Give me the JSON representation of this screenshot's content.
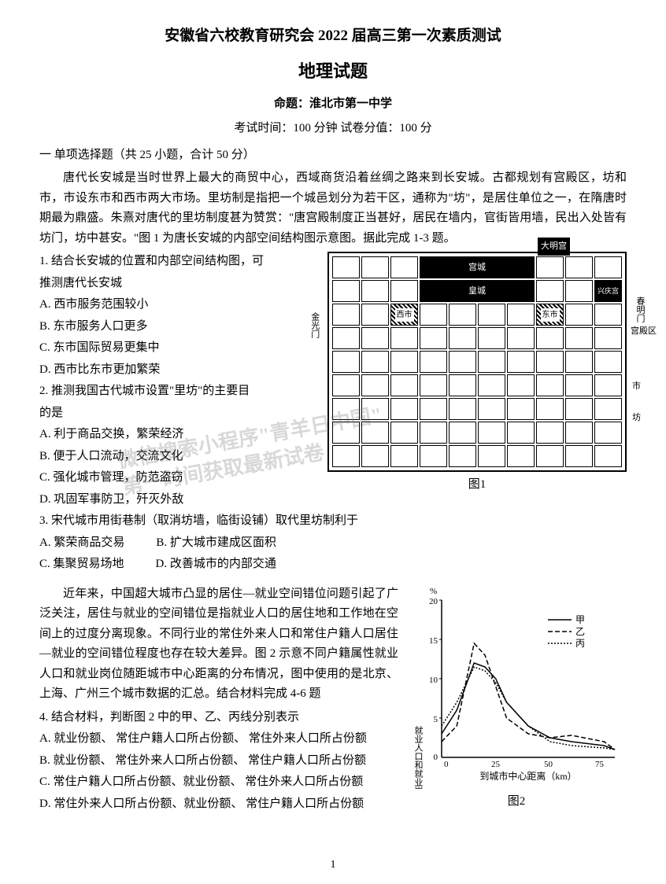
{
  "title_main": "安徽省六校教育研究会 2022 届高三第一次素质测试",
  "title_sub": "地理试题",
  "author": "命题：淮北市第一中学",
  "exam_info": "考试时间：100 分钟  试卷分值：100 分",
  "section_heading": "一  单项选择题（共 25 小题，合计 50 分）",
  "passage1": "唐代长安城是当时世界上最大的商贸中心，西域商货沿着丝绸之路来到长安城。古都规划有宫殿区，坊和市，市设东市和西市两大市场。里坊制是指把一个城邑划分为若干区，通称为\"坊\"，是居住单位之一，在隋唐时期最为鼎盛。朱熹对唐代的里坊制度甚为赞赏：\"唐宫殿制度正当甚好，居民在墙内，官街皆用墙，民出入处皆有坊门，坊中甚安。\"图 1 为唐长安城的内部空间结构图示意图。据此完成 1-3 题。",
  "q1": {
    "stem1": "1. 结合长安城的位置和内部空间结构图，可",
    "stem2": "推测唐代长安城",
    "optA": "A. 西市服务范围较小",
    "optB": "B. 东市服务人口更多",
    "optC": "C. 东市国际贸易更集中",
    "optD": "D. 西市比东市更加繁荣"
  },
  "q2": {
    "stem1": "2. 推测我国古代城市设置\"里坊\"的主要目",
    "stem2": "的是",
    "optA": "A. 利于商品交换，繁荣经济",
    "optB": "B. 便于人口流动，交流文化",
    "optC": "C. 强化城市管理，防范盗窃",
    "optD": "D. 巩固军事防卫，歼灭外敌"
  },
  "q3": {
    "stem": "3. 宋代城市用街巷制（取消坊墙，临街设铺）取代里坊制利于",
    "optA": "A. 繁荣商品交易",
    "optB": "B. 扩大城市建成区面积",
    "optC": "C. 集聚贸易场地",
    "optD": "D. 改善城市的内部交通"
  },
  "passage2": "近年来，中国超大城市凸显的居住—就业空间错位问题引起了广泛关注，居住与就业的空间错位是指就业人口的居住地和工作地在空间上的过度分离现象。不同行业的常住外来人口和常住户籍人口居住—就业的空间错位程度也存在较大差异。图 2 示意不同户籍属性就业人口和就业岗位随距城市中心距离的分布情况，图中使用的是北京、上海、广州三个城市数据的汇总。结合材料完成 4-6 题",
  "q4": {
    "stem": "4. 结合材料，判断图 2 中的甲、乙、丙线分别表示",
    "optA": "A. 就业份额、 常住户籍人口所占份额、 常住外来人口所占份额",
    "optB": "B. 就业份额、 常住外来人口所占份额、 常住户籍人口所占份额",
    "optC": "C. 常住户籍人口所占份额、就业份额、 常住外来人口所占份额",
    "optD": "D. 常住外来人口所占份额、就业份额、 常住户籍人口所占份额"
  },
  "map": {
    "caption": "图1",
    "labels": {
      "daming": "大明宫",
      "gongcheng": "宫城",
      "huangcheng": "皇城",
      "xingqing": "兴庆宫",
      "xishi": "西市",
      "dongshi": "东市",
      "gongdian": "宫殿区",
      "shi": "市",
      "fang": "坊",
      "jinguang": "金光门",
      "chunming": "春明门"
    }
  },
  "chart": {
    "caption": "图2",
    "ylabel": "就业人口和就业岗位占全市份额",
    "xlabel": "到城市中心距离（km）",
    "yunit": "%",
    "legend": {
      "jia": "甲",
      "yi": "乙",
      "bing": "丙"
    },
    "xticks": [
      "0",
      "25",
      "50",
      "75"
    ],
    "yticks": [
      "0",
      "5",
      "10",
      "15",
      "20"
    ],
    "colors": {
      "axis": "#000000",
      "line": "#000000",
      "background": "#ffffff"
    },
    "series": {
      "jia_style": "solid",
      "yi_style": "dash",
      "bing_style": "dot",
      "jia": [
        [
          0,
          3
        ],
        [
          7,
          6
        ],
        [
          15,
          12
        ],
        [
          20,
          11.5
        ],
        [
          25,
          10
        ],
        [
          30,
          7
        ],
        [
          40,
          4
        ],
        [
          50,
          2.5
        ],
        [
          60,
          2
        ],
        [
          75,
          1.5
        ],
        [
          80,
          1
        ]
      ],
      "yi": [
        [
          0,
          2
        ],
        [
          7,
          4
        ],
        [
          15,
          14.5
        ],
        [
          20,
          13
        ],
        [
          25,
          9
        ],
        [
          30,
          5
        ],
        [
          40,
          3
        ],
        [
          50,
          2.5
        ],
        [
          60,
          2.8
        ],
        [
          75,
          2
        ],
        [
          80,
          1
        ]
      ],
      "bing": [
        [
          0,
          4
        ],
        [
          7,
          7
        ],
        [
          15,
          11.5
        ],
        [
          20,
          11
        ],
        [
          25,
          9.5
        ],
        [
          30,
          7
        ],
        [
          40,
          4
        ],
        [
          50,
          2
        ],
        [
          60,
          1.5
        ],
        [
          75,
          1.2
        ],
        [
          80,
          1
        ]
      ]
    }
  },
  "watermark_l1": "微信搜索小程序\"青羊日中国\"",
  "watermark_l2": "第一时间获取最新试卷",
  "page_number": "1"
}
